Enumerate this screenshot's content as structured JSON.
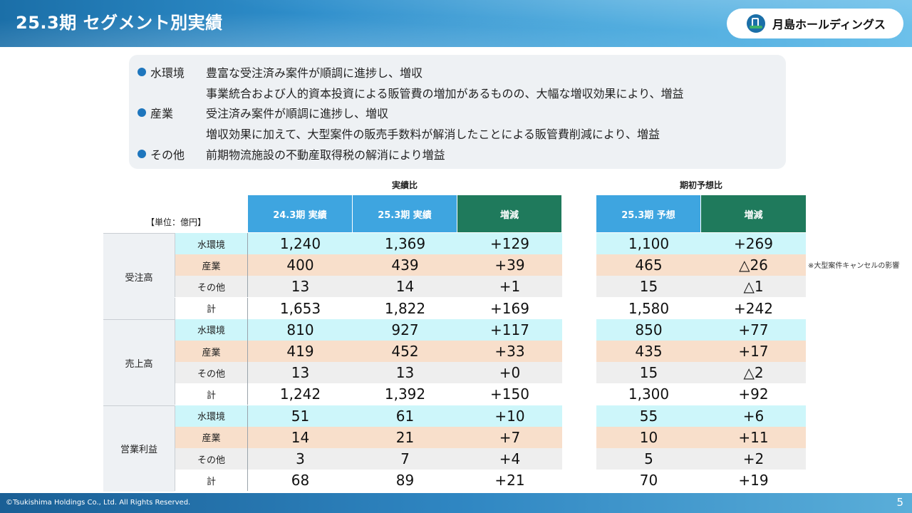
{
  "header": {
    "title": "25.3期 セグメント別実績",
    "logo_text": "月島ホールディングス"
  },
  "summary": [
    {
      "category": "水環境",
      "lines": [
        "豊富な受注済み案件が順調に進捗し、増収",
        "事業統合および人的資本投資による販管費の増加があるものの、大幅な増収効果により、増益"
      ]
    },
    {
      "category": "産業",
      "lines": [
        "受注済み案件が順調に進捗し、増収",
        "増収効果に加えて、大型案件の販売手数料が解消したことによる販管費削減により、増益"
      ]
    },
    {
      "category": "その他",
      "lines": [
        "前期物流施設の不動産取得税の解消により増益"
      ]
    }
  ],
  "table": {
    "caption_actual": "実績比",
    "caption_forecast": "期初予想比",
    "unit": "【単位：億円】",
    "headers": [
      "24.3期 実績",
      "25.3期 実績",
      "増減",
      "25.3期 予想",
      "増減"
    ],
    "groups": [
      {
        "name": "受注高",
        "rows": [
          {
            "sub": "水環境",
            "v": [
              "1,240",
              "1,369",
              "+129",
              "1,100",
              "+269"
            ]
          },
          {
            "sub": "産業",
            "v": [
              "400",
              "439",
              "+39",
              "465",
              "△26"
            ]
          },
          {
            "sub": "その他",
            "v": [
              "13",
              "14",
              "+1",
              "15",
              "△1"
            ]
          },
          {
            "sub": "計",
            "v": [
              "1,653",
              "1,822",
              "+169",
              "1,580",
              "+242"
            ]
          }
        ]
      },
      {
        "name": "売上高",
        "rows": [
          {
            "sub": "水環境",
            "v": [
              "810",
              "927",
              "+117",
              "850",
              "+77"
            ]
          },
          {
            "sub": "産業",
            "v": [
              "419",
              "452",
              "+33",
              "435",
              "+17"
            ]
          },
          {
            "sub": "その他",
            "v": [
              "13",
              "13",
              "+0",
              "15",
              "△2"
            ]
          },
          {
            "sub": "計",
            "v": [
              "1,242",
              "1,392",
              "+150",
              "1,300",
              "+92"
            ]
          }
        ]
      },
      {
        "name": "営業利益",
        "rows": [
          {
            "sub": "水環境",
            "v": [
              "51",
              "61",
              "+10",
              "55",
              "+6"
            ]
          },
          {
            "sub": "産業",
            "v": [
              "14",
              "21",
              "+7",
              "10",
              "+11"
            ]
          },
          {
            "sub": "その他",
            "v": [
              "3",
              "7",
              "+4",
              "5",
              "+2"
            ]
          },
          {
            "sub": "計",
            "v": [
              "68",
              "89",
              "+21",
              "70",
              "+19"
            ]
          }
        ]
      }
    ],
    "note": "※大型案件キャンセルの影響"
  },
  "footer": {
    "copyright": "©Tsukishima Holdings Co., Ltd. All Rights Reserved.",
    "page": "5"
  }
}
